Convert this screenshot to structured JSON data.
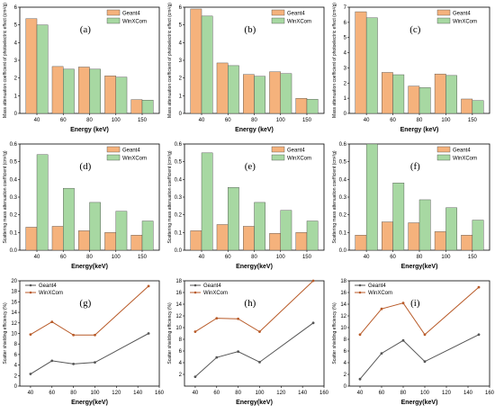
{
  "colors": {
    "geant4": "#f5b27c",
    "winxcom": "#a7d8a2",
    "geant4_line": "#b85a28",
    "winxcom_line": "#555555",
    "axis": "#000000"
  },
  "chart_data": [
    {
      "id": "a",
      "type": "bar",
      "label": "(a)",
      "categories": [
        "40",
        "60",
        "80",
        "100",
        "150"
      ],
      "series": [
        {
          "name": "Geant4",
          "values": [
            5.35,
            2.65,
            2.62,
            2.12,
            0.78
          ]
        },
        {
          "name": "WinXCom",
          "values": [
            5.0,
            2.5,
            2.5,
            2.05,
            0.75
          ]
        }
      ],
      "xlabel": "Energy (keV)",
      "ylabel": "Mass attenuation coefficient of photoelectric effect (cm²/g)",
      "ylim": [
        0,
        6
      ],
      "yticks": [
        "0",
        "1",
        "2",
        "3",
        "4",
        "5",
        "6"
      ],
      "legend": "top-right"
    },
    {
      "id": "b",
      "type": "bar",
      "label": "(b)",
      "categories": [
        "40",
        "60",
        "80",
        "100",
        "150"
      ],
      "series": [
        {
          "name": "Geant4",
          "values": [
            5.9,
            2.85,
            2.2,
            2.35,
            0.85
          ]
        },
        {
          "name": "WinXCom",
          "values": [
            5.5,
            2.7,
            2.1,
            2.25,
            0.8
          ]
        }
      ],
      "xlabel": "Energy (keV)",
      "ylabel": "Mass attenuation coefficient of photoelectric effect (cm²/g)",
      "ylim": [
        0,
        6
      ],
      "yticks": [
        "0",
        "1",
        "2",
        "3",
        "4",
        "5",
        "6"
      ],
      "legend": "top-right"
    },
    {
      "id": "c",
      "type": "bar",
      "label": "(c)",
      "categories": [
        "40",
        "60",
        "80",
        "100",
        "150"
      ],
      "series": [
        {
          "name": "Geant4",
          "values": [
            6.7,
            2.7,
            1.8,
            2.6,
            0.95
          ]
        },
        {
          "name": "WinXCom",
          "values": [
            6.3,
            2.55,
            1.7,
            2.5,
            0.85
          ]
        }
      ],
      "xlabel": "Energy (keV)",
      "ylabel": "Mass attenuation coefficient of photoelectric effect (cm²/g)",
      "ylim": [
        0,
        7
      ],
      "yticks": [
        "0",
        "1",
        "2",
        "3",
        "4",
        "5",
        "6",
        "7"
      ],
      "legend": "top-right"
    },
    {
      "id": "d",
      "type": "bar",
      "label": "(d)",
      "categories": [
        "40",
        "60",
        "80",
        "100",
        "150"
      ],
      "series": [
        {
          "name": "Geant4",
          "values": [
            0.13,
            0.135,
            0.11,
            0.1,
            0.085
          ]
        },
        {
          "name": "WinXCom",
          "values": [
            0.54,
            0.35,
            0.27,
            0.22,
            0.165
          ]
        }
      ],
      "xlabel": "Energy(keV)",
      "ylabel": "Scattering mass attenuation coefficient (cm²/g)",
      "ylim": [
        0,
        0.6
      ],
      "yticks": [
        "0.0",
        "0.1",
        "0.2",
        "0.3",
        "0.4",
        "0.5",
        "0.6"
      ],
      "legend": "top-right"
    },
    {
      "id": "e",
      "type": "bar",
      "label": "(e)",
      "categories": [
        "40",
        "60",
        "80",
        "100",
        "150"
      ],
      "series": [
        {
          "name": "Geant4",
          "values": [
            0.11,
            0.145,
            0.135,
            0.095,
            0.1
          ]
        },
        {
          "name": "WinXCom",
          "values": [
            0.55,
            0.355,
            0.27,
            0.225,
            0.165
          ]
        }
      ],
      "xlabel": "Energy(keV)",
      "ylabel": "Scattering mass attenuation coefficient (cm²/g)",
      "ylim": [
        0,
        0.6
      ],
      "yticks": [
        "0.0",
        "0.1",
        "0.2",
        "0.3",
        "0.4",
        "0.5",
        "0.6"
      ],
      "legend": "top-right"
    },
    {
      "id": "f",
      "type": "bar",
      "label": "(f)",
      "categories": [
        "40",
        "60",
        "80",
        "100",
        "150"
      ],
      "series": [
        {
          "name": "Geant4",
          "values": [
            0.085,
            0.16,
            0.155,
            0.105,
            0.085
          ]
        },
        {
          "name": "WinXCom",
          "values": [
            0.6,
            0.38,
            0.285,
            0.24,
            0.17
          ]
        }
      ],
      "xlabel": "Energy(keV)",
      "ylabel": "Scattering mass attenuation coefficient (cm²/g)",
      "ylim": [
        0,
        0.6
      ],
      "yticks": [
        "0.0",
        "0.1",
        "0.2",
        "0.3",
        "0.4",
        "0.5",
        "0.6"
      ],
      "legend": "top-right"
    },
    {
      "id": "g",
      "type": "line",
      "label": "(g)",
      "x": [
        40,
        60,
        80,
        100,
        150
      ],
      "series": [
        {
          "name": "Geant4",
          "values": [
            2.3,
            4.8,
            4.2,
            4.5,
            10.0
          ]
        },
        {
          "name": "WinXCom",
          "values": [
            9.8,
            12.2,
            9.7,
            9.7,
            19.0
          ]
        }
      ],
      "xlabel": "Energy(keV)",
      "ylabel": "Scatter shielding efficiency (%)",
      "xlim": [
        30,
        160
      ],
      "xticks": [
        "40",
        "60",
        "80",
        "100",
        "120",
        "140",
        "160"
      ],
      "ylim": [
        0,
        20
      ],
      "yticks": [
        "0",
        "2",
        "4",
        "6",
        "8",
        "10",
        "12",
        "14",
        "16",
        "18",
        "20"
      ],
      "legend": "top-left"
    },
    {
      "id": "h",
      "type": "line",
      "label": "(h)",
      "x": [
        40,
        60,
        80,
        100,
        150
      ],
      "series": [
        {
          "name": "Geant4",
          "values": [
            1.6,
            4.9,
            5.9,
            4.1,
            10.8
          ]
        },
        {
          "name": "WinXCom",
          "values": [
            9.3,
            11.6,
            11.5,
            9.3,
            18.0
          ]
        }
      ],
      "xlabel": "Energy(keV)",
      "ylabel": "Scatter shielding efficiency (%)",
      "xlim": [
        30,
        160
      ],
      "xticks": [
        "40",
        "60",
        "80",
        "100",
        "120",
        "140",
        "160"
      ],
      "ylim": [
        0,
        18
      ],
      "yticks": [
        "2",
        "4",
        "6",
        "8",
        "10",
        "12",
        "14",
        "16",
        "18"
      ],
      "legend": "top-left"
    },
    {
      "id": "i",
      "type": "line",
      "label": "(i)",
      "x": [
        40,
        60,
        80,
        100,
        150
      ],
      "series": [
        {
          "name": "Geant4",
          "values": [
            1.2,
            5.6,
            7.8,
            4.2,
            8.8
          ]
        },
        {
          "name": "WinXCom",
          "values": [
            8.8,
            13.2,
            14.2,
            8.8,
            16.9
          ]
        }
      ],
      "xlabel": "Energy(keV)",
      "ylabel": "Scatter shielding efficiency (%)",
      "xlim": [
        30,
        160
      ],
      "xticks": [
        "40",
        "60",
        "80",
        "100",
        "120",
        "140",
        "160"
      ],
      "ylim": [
        0,
        18
      ],
      "yticks": [
        "0",
        "2",
        "4",
        "6",
        "8",
        "10",
        "12",
        "14",
        "16",
        "18"
      ],
      "legend": "top-left"
    }
  ]
}
